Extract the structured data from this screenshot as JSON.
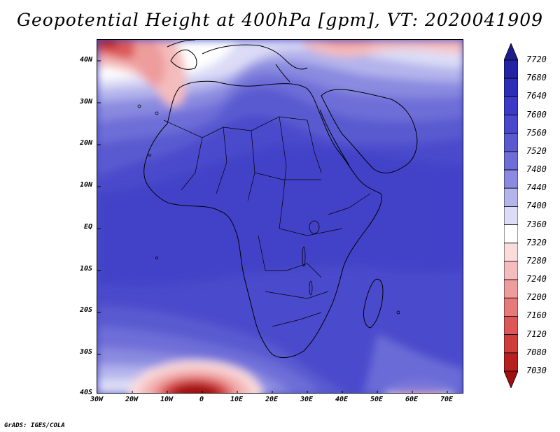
{
  "title": "Geopotential Height at 400hPa [gpm], VT: 2020041909",
  "credit": "GrADS: IGES/COLA",
  "map": {
    "lat_ticks": [
      "40N",
      "30N",
      "20N",
      "10N",
      "EQ",
      "10S",
      "20S",
      "30S",
      "40S"
    ],
    "lon_ticks": [
      "30W",
      "20W",
      "10W",
      "0",
      "10E",
      "20E",
      "30E",
      "40E",
      "50E",
      "60E",
      "70E"
    ],
    "lat_range": [
      -40,
      44
    ],
    "lon_range": [
      -30,
      75
    ]
  },
  "colorbar": {
    "levels": [
      "7720",
      "7680",
      "7640",
      "7600",
      "7560",
      "7520",
      "7480",
      "7440",
      "7400",
      "7360",
      "7320",
      "7280",
      "7240",
      "7200",
      "7160",
      "7120",
      "7080",
      "7030"
    ],
    "colors": [
      "#1c1c8c",
      "#2323a6",
      "#2d2db8",
      "#3a3ac6",
      "#4848cc",
      "#5a5ad0",
      "#6e6ed8",
      "#8a8ae0",
      "#b4b4ec",
      "#dcdcf6",
      "#ffffff",
      "#fadcdc",
      "#f4bcbc",
      "#ee9c9c",
      "#e67a7a",
      "#dc5858",
      "#ce3c3c",
      "#b82020",
      "#a01010"
    ]
  }
}
